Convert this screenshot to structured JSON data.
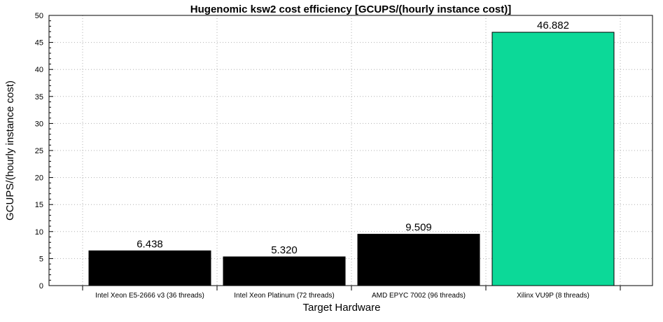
{
  "chart_data": {
    "type": "bar",
    "title": "Hugenomic ksw2 cost efficiency [GCUPS/(hourly instance cost)]",
    "xlabel": "Target Hardware",
    "ylabel": "GCUPS/(hourly instance cost)",
    "ylim": [
      0,
      50
    ],
    "yticks": [
      0,
      5,
      10,
      15,
      20,
      25,
      30,
      35,
      40,
      45,
      50
    ],
    "grid": true,
    "categories": [
      "Intel Xeon E5-2666 v3 (36 threads)",
      "Intel Xeon Platinum (72 threads)",
      "AMD EPYC 7002 (96 threads)",
      "Xilinx VU9P (8 threads)"
    ],
    "values": [
      6.438,
      5.32,
      9.509,
      46.882
    ],
    "value_labels": [
      "6.438",
      "5.320",
      "9.509",
      "46.882"
    ],
    "colors": [
      "#000000",
      "#000000",
      "#000000",
      "#0cd998"
    ]
  }
}
